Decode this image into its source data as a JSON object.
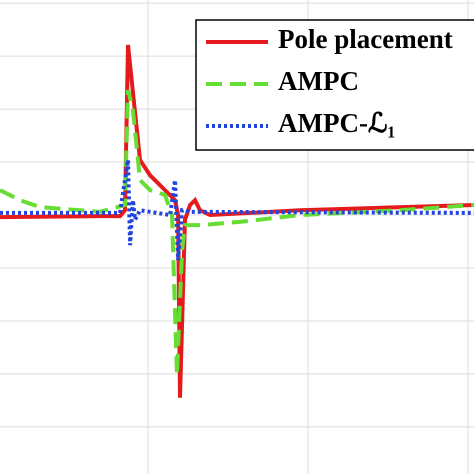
{
  "chart_data": {
    "type": "line",
    "xlim": [
      0.075,
      3.0375
    ],
    "ylim": [
      -4.89,
      4.06
    ],
    "grid": true,
    "legend": "upper right",
    "series": [
      {
        "name": "Pole placement",
        "color": "#e41a1c",
        "style": "solid",
        "x": [
          0.075,
          0.7,
          0.825,
          0.856,
          0.875,
          0.95,
          1.013,
          1.106,
          1.169,
          1.188,
          1.2,
          1.231,
          1.263,
          1.294,
          1.325,
          1.388,
          1.95,
          3.0375
        ],
        "values": [
          -0.04,
          -0.02,
          -0.02,
          0.09,
          3.21,
          1.04,
          0.75,
          0.47,
          0.28,
          0,
          -3.45,
          -0.09,
          0.19,
          0.28,
          0.09,
          0,
          0.09,
          0.19
        ]
      },
      {
        "name": "AMPC",
        "color": "#66dd33",
        "style": "dashed",
        "x": [
          0.075,
          0.2,
          0.325,
          0.7,
          0.856,
          0.875,
          0.906,
          0.95,
          1.013,
          1.106,
          1.15,
          1.181,
          1.213,
          1.231,
          1.325,
          1.575,
          1.95,
          2.575,
          3.0375
        ],
        "values": [
          0.47,
          0.28,
          0.15,
          0.06,
          0.19,
          2.36,
          1.98,
          0.66,
          0.47,
          0.38,
          0,
          -3.02,
          -0.66,
          -0.19,
          -0.19,
          -0.13,
          0,
          0.09,
          0.19
        ]
      },
      {
        "name": "AMPC-ℒ₁",
        "color": "#2244dd",
        "style": "dotted",
        "x": [
          0.075,
          0.825,
          0.875,
          0.888,
          0.906,
          0.919,
          0.95,
          1.138,
          1.169,
          1.188,
          1.213,
          1.263,
          3.0375
        ],
        "values": [
          0.04,
          0.04,
          1.04,
          -0.57,
          0.28,
          -0.09,
          0.09,
          0,
          0.66,
          -0.85,
          0.09,
          0.06,
          0.04
        ]
      }
    ]
  }
}
